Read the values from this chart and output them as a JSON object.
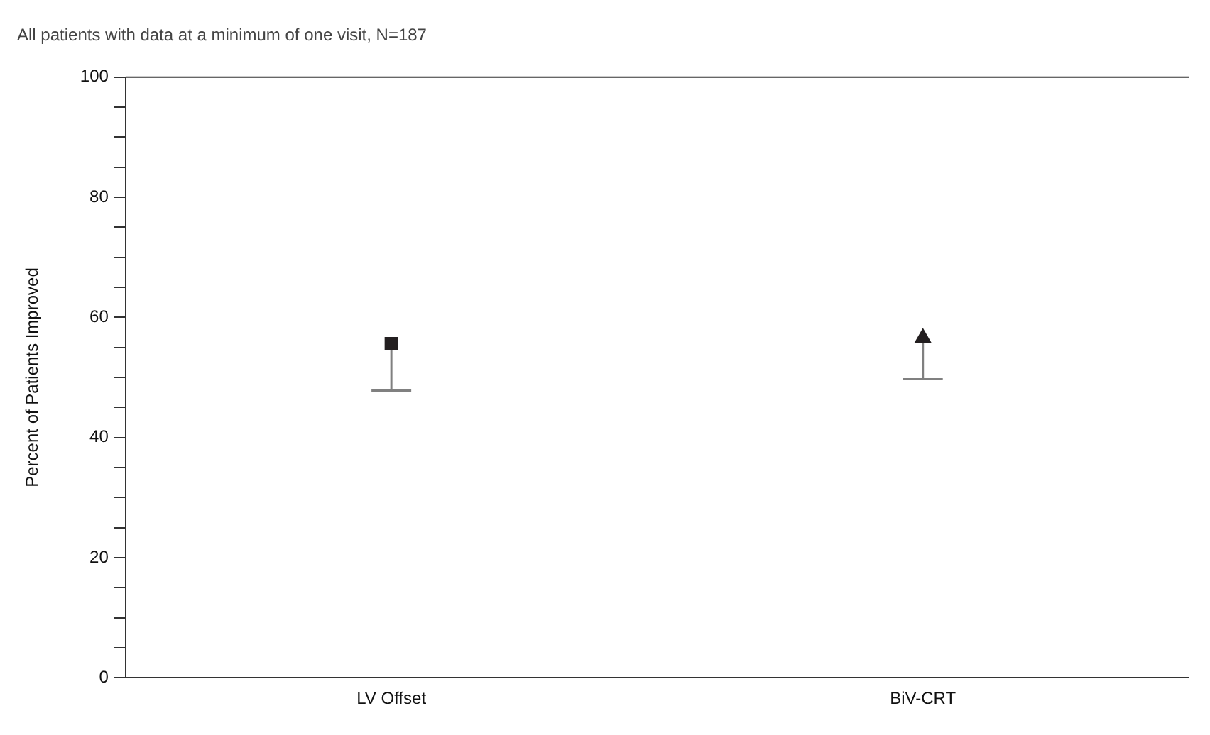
{
  "chart_data": {
    "type": "scatter",
    "title": "All patients with data at a minimum of one visit, N=187",
    "ylabel": "Percent of Patients Improved",
    "categories": [
      "LV Offset",
      "BiV-CRT"
    ],
    "series": [
      {
        "color": "#231f20",
        "marker": "square",
        "values": [
          55.6,
          null
        ],
        "errors": [
          [
            47.8,
            55.6
          ],
          null
        ]
      },
      {
        "color": "#231f20",
        "marker": "triangle",
        "values": [
          null,
          56.6
        ],
        "errors": [
          null,
          [
            49.7,
            56.6
          ]
        ]
      }
    ],
    "ylim": [
      0,
      100
    ],
    "yticks": [
      0,
      {
        "value": 5,
        "label": null
      },
      {
        "value": 10,
        "label": null
      },
      {
        "value": 15,
        "label": null
      },
      20,
      {
        "value": 25,
        "label": null
      },
      {
        "value": 30,
        "label": null
      },
      {
        "value": 35,
        "label": null
      },
      40,
      {
        "value": 45,
        "label": null
      },
      {
        "value": 50,
        "label": null
      },
      {
        "value": 55,
        "label": null
      },
      60,
      {
        "value": 65,
        "label": null
      },
      {
        "value": 70,
        "label": null
      },
      {
        "value": 75,
        "label": null
      },
      80,
      {
        "value": 85,
        "label": null
      },
      {
        "value": 90,
        "label": null
      },
      {
        "value": 95,
        "label": null
      },
      100
    ],
    "grid": false,
    "legend": false
  }
}
